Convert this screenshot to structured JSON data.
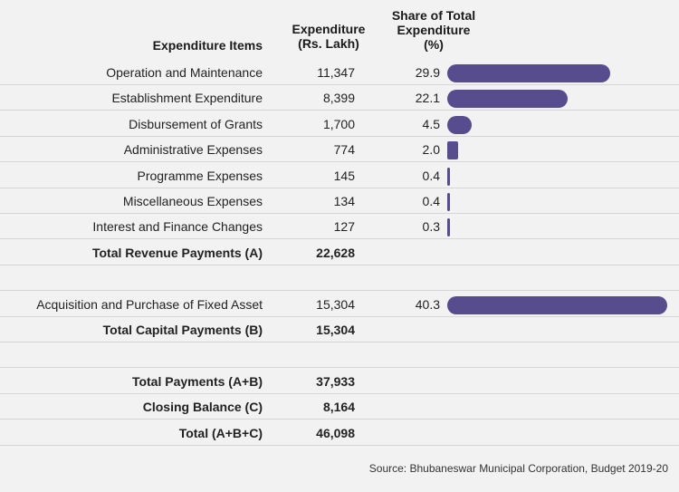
{
  "headers": {
    "items": "Expenditure Items",
    "expenditure_line1": "Expenditure",
    "expenditure_line2": "(Rs. Lakh)",
    "share_line1": "Share of Total",
    "share_line2": "Expenditure",
    "share_line3": "(%)"
  },
  "rows": [
    {
      "label": "Operation and Maintenance",
      "value": "11,347",
      "pct": "29.9",
      "bold": false
    },
    {
      "label": "Establishment Expenditure",
      "value": "8,399",
      "pct": "22.1",
      "bold": false
    },
    {
      "label": "Disbursement of Grants",
      "value": "1,700",
      "pct": "4.5",
      "bold": false
    },
    {
      "label": "Administrative Expenses",
      "value": "774",
      "pct": "2.0",
      "bold": false
    },
    {
      "label": "Programme Expenses",
      "value": "145",
      "pct": "0.4",
      "bold": false
    },
    {
      "label": "Miscellaneous Expenses",
      "value": "134",
      "pct": "0.4",
      "bold": false
    },
    {
      "label": "Interest and Finance Changes",
      "value": "127",
      "pct": "0.3",
      "bold": false
    },
    {
      "label": "Total Revenue Payments (A)",
      "value": "22,628",
      "pct": "",
      "bold": true
    },
    {
      "label": "",
      "value": "",
      "pct": "",
      "bold": false,
      "spacer": true
    },
    {
      "label": "Acquisition and Purchase of Fixed Asset",
      "value": "15,304",
      "pct": "40.3",
      "bold": false
    },
    {
      "label": "Total Capital Payments (B)",
      "value": "15,304",
      "pct": "",
      "bold": true
    },
    {
      "label": "",
      "value": "",
      "pct": "",
      "bold": false,
      "spacer": true
    },
    {
      "label": "Total Payments (A+B)",
      "value": "37,933",
      "pct": "",
      "bold": true
    },
    {
      "label": "Closing Balance (C)",
      "value": "8,164",
      "pct": "",
      "bold": true
    },
    {
      "label": "Total (A+B+C)",
      "value": "46,098",
      "pct": "",
      "bold": true
    }
  ],
  "chart_data": {
    "type": "bar",
    "orientation": "horizontal",
    "categories": [
      "Operation and Maintenance",
      "Establishment Expenditure",
      "Disbursement of Grants",
      "Administrative Expenses",
      "Programme Expenses",
      "Miscellaneous Expenses",
      "Interest and Finance Changes",
      "Acquisition and Purchase of Fixed Asset"
    ],
    "values": [
      29.9,
      22.1,
      4.5,
      2.0,
      0.4,
      0.4,
      0.3,
      40.3
    ],
    "xlim": [
      0,
      40.3
    ],
    "bar_color": "#574d8e",
    "title": "",
    "ylabel": "Expenditure Items",
    "xlabel": "Share of Total Expenditure (%)"
  },
  "source": "Source: Bhubaneswar Municipal Corporation, Budget 2019-20",
  "colors": {
    "bar": "#574d8e",
    "background": "#f2f2f2",
    "divider": "#d6d6d6"
  }
}
